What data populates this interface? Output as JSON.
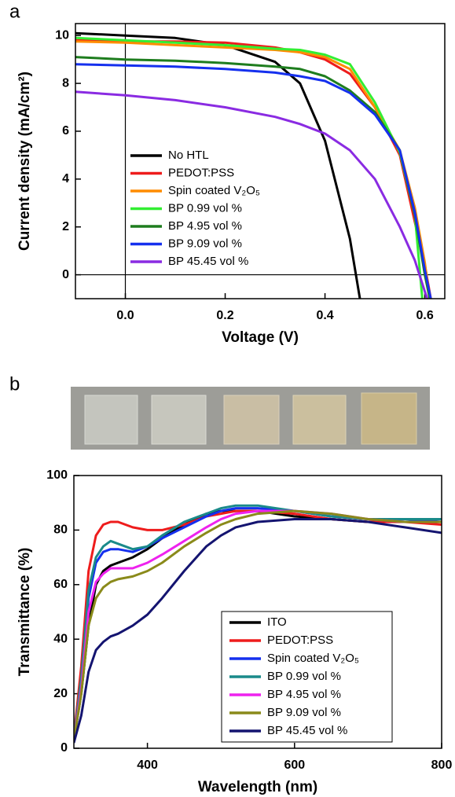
{
  "chart_data": [
    {
      "type": "line",
      "panel_label": "a",
      "x_label": "Voltage (V)",
      "y_label": "Current density  (mA/cm²)",
      "xlim": [
        -0.1,
        0.64
      ],
      "ylim": [
        -1,
        10.5
      ],
      "xticks": [
        {
          "value": 0,
          "label": "0.0"
        },
        0.2,
        0.4,
        0.6
      ],
      "yticks": [
        0,
        2,
        4,
        6,
        8,
        10
      ],
      "legend": "center-left",
      "legend_frame": false,
      "series": [
        {
          "name": "No HTL",
          "color": "#000000",
          "x": [
            -0.1,
            0,
            0.1,
            0.2,
            0.3,
            0.35,
            0.4,
            0.45,
            0.47
          ],
          "values": [
            10.1,
            10.0,
            9.9,
            9.6,
            8.9,
            8.0,
            5.6,
            1.5,
            -1.0
          ]
        },
        {
          "name": "PEDOT:PSS",
          "color": "#ee1c1c",
          "x": [
            -0.1,
            0,
            0.1,
            0.2,
            0.3,
            0.35,
            0.4,
            0.45,
            0.5,
            0.55,
            0.58,
            0.6,
            0.612
          ],
          "values": [
            9.8,
            9.75,
            9.75,
            9.7,
            9.5,
            9.3,
            9.0,
            8.4,
            7.0,
            5.0,
            2.2,
            0.4,
            -1.0
          ]
        },
        {
          "name": "Spin coated V₂O₅",
          "color": "#ff8c00",
          "x": [
            -0.1,
            0,
            0.1,
            0.2,
            0.3,
            0.35,
            0.4,
            0.45,
            0.5,
            0.55,
            0.58,
            0.6,
            0.61
          ],
          "values": [
            9.75,
            9.7,
            9.6,
            9.5,
            9.4,
            9.3,
            9.1,
            8.6,
            7.0,
            5.2,
            2.8,
            0.5,
            -1.0
          ]
        },
        {
          "name": "BP 0.99 vol %",
          "color": "#33ee33",
          "x": [
            -0.1,
            0,
            0.1,
            0.2,
            0.3,
            0.35,
            0.4,
            0.45,
            0.5,
            0.55,
            0.58,
            0.595
          ],
          "values": [
            9.9,
            9.8,
            9.7,
            9.6,
            9.45,
            9.4,
            9.2,
            8.8,
            7.2,
            5.1,
            2.5,
            -1.0
          ]
        },
        {
          "name": "BP 4.95 vol %",
          "color": "#1e7d1e",
          "x": [
            -0.1,
            0,
            0.1,
            0.2,
            0.3,
            0.35,
            0.4,
            0.45,
            0.5,
            0.55,
            0.58,
            0.6,
            0.61
          ],
          "values": [
            9.1,
            9.0,
            8.95,
            8.85,
            8.7,
            8.6,
            8.3,
            7.7,
            6.8,
            5.2,
            2.5,
            0,
            -1.0
          ]
        },
        {
          "name": "BP 9.09 vol %",
          "color": "#1530ee",
          "x": [
            -0.1,
            0,
            0.1,
            0.2,
            0.3,
            0.35,
            0.4,
            0.45,
            0.5,
            0.55,
            0.58,
            0.6,
            0.612
          ],
          "values": [
            8.8,
            8.75,
            8.7,
            8.6,
            8.45,
            8.3,
            8.1,
            7.6,
            6.7,
            5.2,
            2.6,
            0.2,
            -1.0
          ]
        },
        {
          "name": "BP 45.45 vol %",
          "color": "#8a2be2",
          "x": [
            -0.1,
            0,
            0.1,
            0.2,
            0.3,
            0.35,
            0.4,
            0.45,
            0.5,
            0.55,
            0.58,
            0.6,
            0.605
          ],
          "values": [
            7.65,
            7.5,
            7.3,
            7.0,
            6.6,
            6.3,
            5.9,
            5.2,
            4.0,
            2.0,
            0.6,
            -0.7,
            -1.0
          ]
        }
      ]
    },
    {
      "type": "line",
      "panel_label": "b",
      "x_label": "Wavelength (nm)",
      "y_label": "Transmittance (%)",
      "xlim": [
        300,
        800
      ],
      "ylim": [
        0,
        100
      ],
      "xticks": [
        400,
        600,
        800
      ],
      "yticks": [
        0,
        20,
        40,
        60,
        80,
        100
      ],
      "legend": "lower-right",
      "legend_frame": true,
      "x": [
        300,
        310,
        320,
        330,
        340,
        350,
        360,
        380,
        400,
        420,
        450,
        480,
        500,
        520,
        550,
        600,
        650,
        700,
        750,
        800
      ],
      "series": [
        {
          "name": "ITO",
          "color": "#000000",
          "values": [
            3,
            20,
            45,
            60,
            65,
            67,
            68,
            70,
            73,
            77,
            82,
            86,
            87,
            87,
            87,
            85,
            84,
            83,
            83,
            83
          ]
        },
        {
          "name": "PEDOT:PSS",
          "color": "#ee1c1c",
          "values": [
            4,
            30,
            65,
            78,
            82,
            83,
            83,
            81,
            80,
            80,
            82,
            85,
            86,
            87,
            87,
            86,
            84,
            83,
            83,
            82
          ]
        },
        {
          "name": "Spin coated V₂O₅",
          "color": "#1530ee",
          "values": [
            3,
            25,
            55,
            68,
            72,
            73,
            73,
            72,
            74,
            77,
            81,
            85,
            87,
            88,
            88,
            87,
            85,
            84,
            83,
            84
          ]
        },
        {
          "name": "BP 0.99 vol %",
          "color": "#1a8a8a",
          "values": [
            3,
            26,
            58,
            70,
            74,
            76,
            75,
            73,
            74,
            78,
            83,
            86,
            88,
            89,
            89,
            87,
            85,
            84,
            84,
            84
          ]
        },
        {
          "name": "BP 4.95 vol %",
          "color": "#ee22ee",
          "values": [
            3,
            22,
            50,
            61,
            64,
            66,
            66,
            66,
            68,
            71,
            76,
            81,
            84,
            86,
            87,
            87,
            86,
            84,
            83,
            83
          ]
        },
        {
          "name": "BP 9.09 vol %",
          "color": "#8a8a1a",
          "values": [
            3,
            20,
            45,
            55,
            59,
            61,
            62,
            63,
            65,
            68,
            74,
            79,
            82,
            84,
            86,
            87,
            86,
            84,
            83,
            83
          ]
        },
        {
          "name": "BP 45.45 vol %",
          "color": "#141470",
          "values": [
            2,
            12,
            28,
            36,
            39,
            41,
            42,
            45,
            49,
            55,
            65,
            74,
            78,
            81,
            83,
            84,
            84,
            83,
            81,
            79
          ]
        }
      ]
    }
  ]
}
